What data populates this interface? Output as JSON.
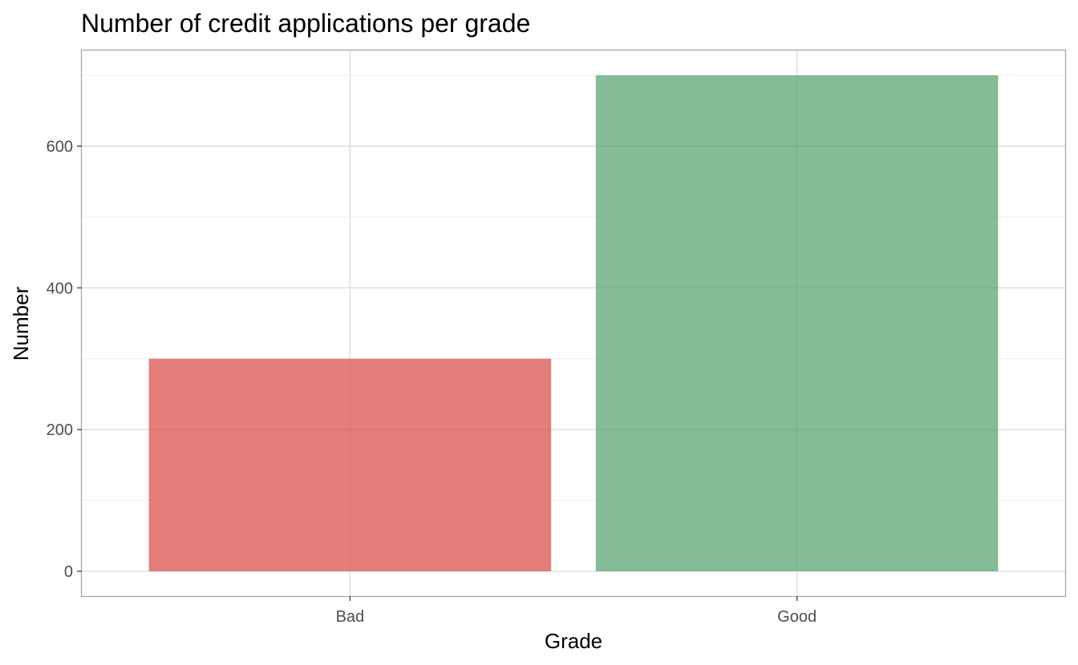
{
  "chart_data": {
    "type": "bar",
    "title": "Number of credit applications per grade",
    "xlabel": "Grade",
    "ylabel": "Number",
    "categories": [
      "Bad",
      "Good"
    ],
    "values": [
      300,
      700
    ],
    "colors": [
      "#d9534f",
      "#5ba571"
    ],
    "bar_opacity": 0.75,
    "ylim": [
      -35,
      735
    ],
    "yticks": [
      0,
      200,
      400,
      600
    ],
    "ytick_labels": [
      "0",
      "200",
      "400",
      "600"
    ],
    "yminor": [
      100,
      300,
      500,
      700
    ],
    "grid": true,
    "legend": "none"
  }
}
